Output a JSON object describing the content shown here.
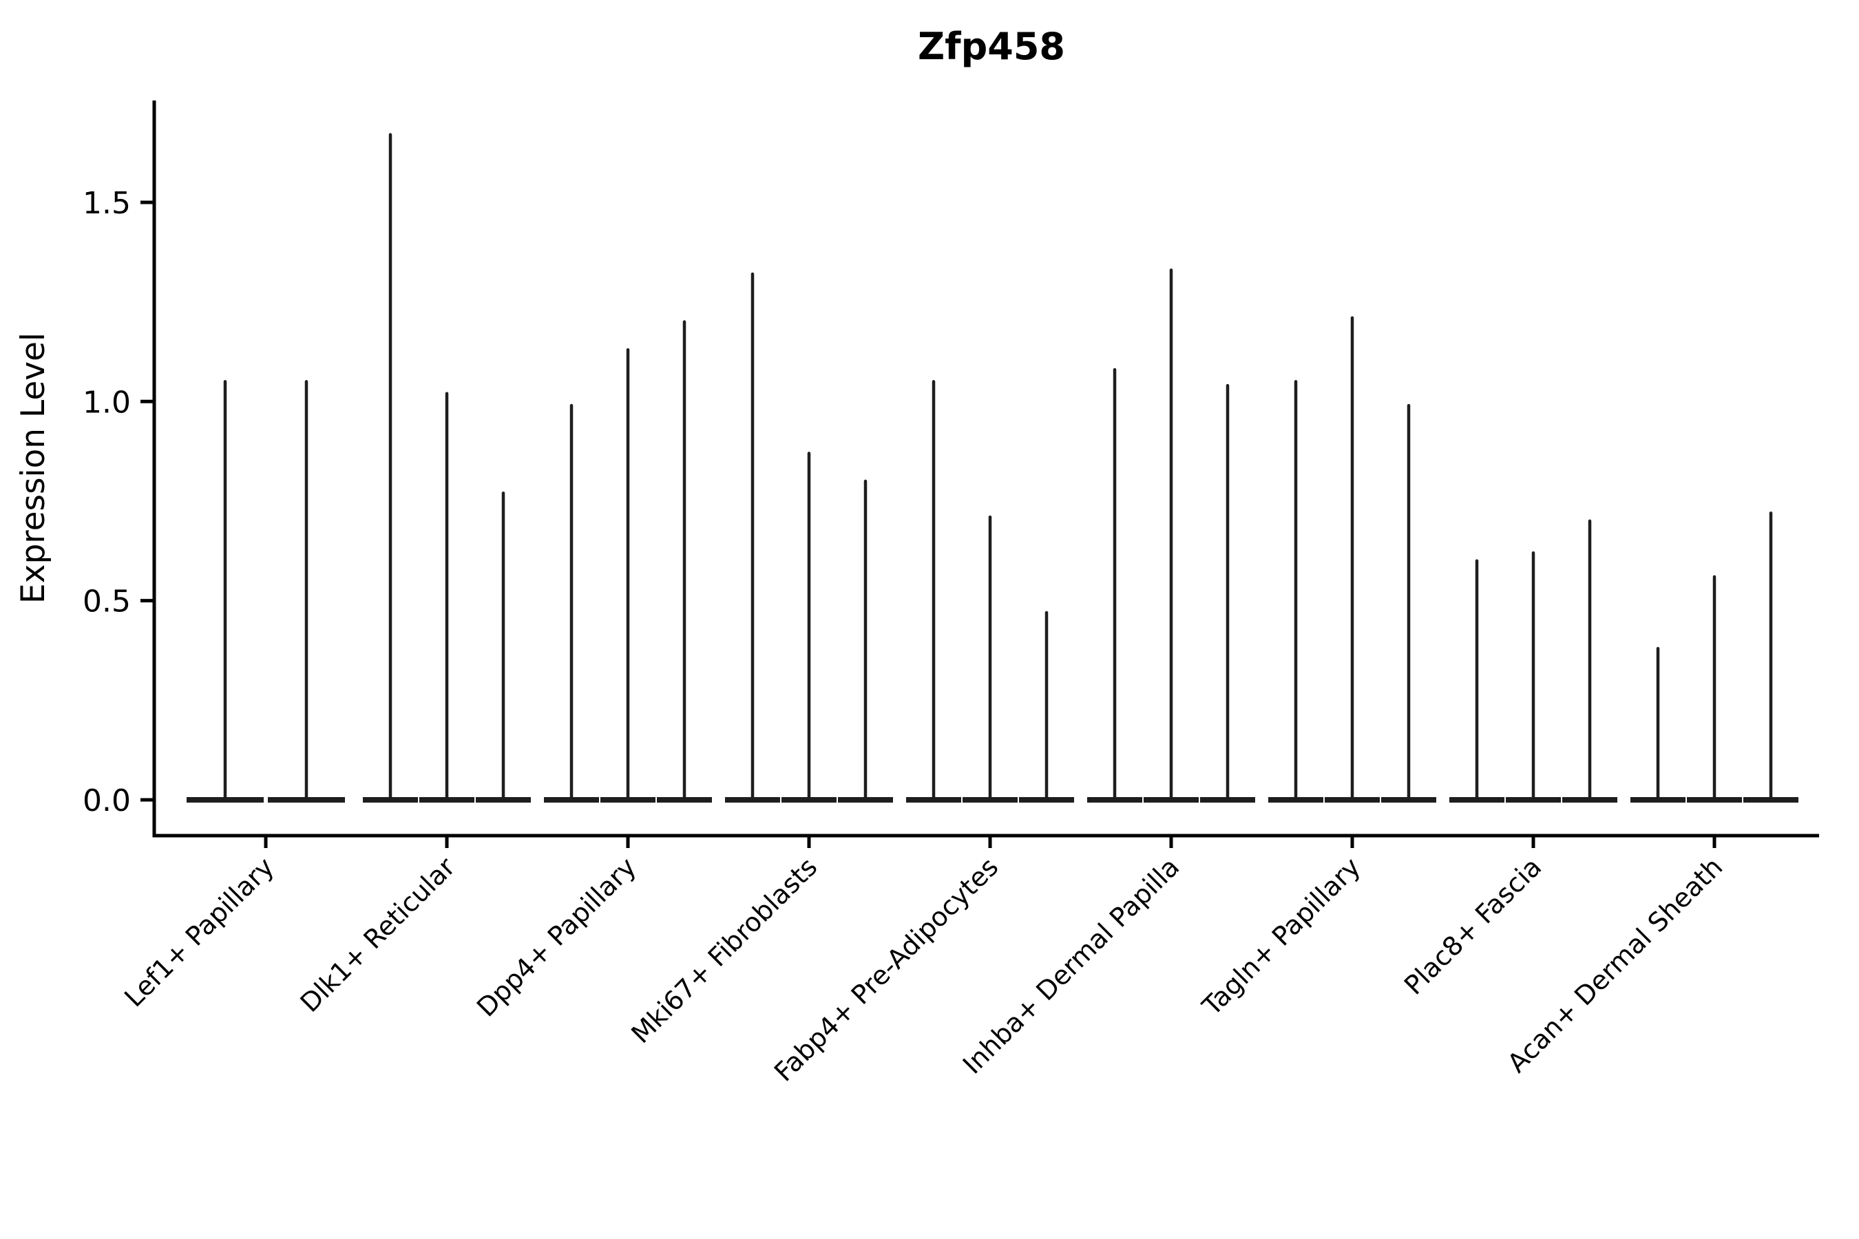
{
  "chart_data": {
    "type": "violin",
    "title": "Zfp458",
    "xlabel": "",
    "ylabel": "Expression Level",
    "ylim": [
      -0.09,
      1.76
    ],
    "yticks": [
      0.0,
      0.5,
      1.0,
      1.5
    ],
    "ytick_labels": [
      "0.0",
      "0.5",
      "1.0",
      "1.5"
    ],
    "grid": false,
    "legend_position": "none",
    "categories": [
      "Lef1+ Papillary",
      "Dlk1+ Reticular",
      "Dpp4+ Papillary",
      "Mki67+ Fibroblasts",
      "Fabp4+ Pre-Adipocytes",
      "Inhba+ Dermal Papilla",
      "Tagln+ Papillary",
      "Plac8+ Fascia",
      "Acan+ Dermal Sheath"
    ],
    "violin_peaks": [
      [
        1.05,
        1.05
      ],
      [
        1.67,
        1.02,
        0.77
      ],
      [
        0.99,
        1.13,
        1.2
      ],
      [
        1.32,
        0.87,
        0.8
      ],
      [
        1.05,
        0.71,
        0.47
      ],
      [
        1.08,
        1.33,
        1.04
      ],
      [
        1.05,
        1.21,
        0.99
      ],
      [
        0.6,
        0.62,
        0.7
      ],
      [
        0.38,
        0.56,
        0.72
      ]
    ],
    "colors": {
      "violin": "#1e1e1e",
      "axis": "#000000",
      "background": "#ffffff"
    }
  }
}
